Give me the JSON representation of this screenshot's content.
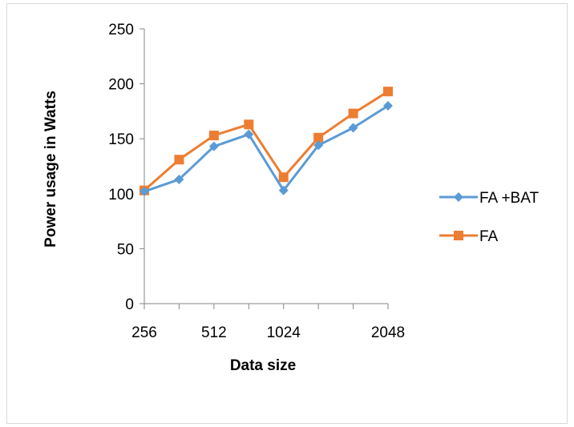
{
  "chart_data": {
    "type": "line",
    "title": "",
    "xlabel": "Data  size",
    "ylabel": "Power usage  in Watts",
    "categories": [
      "256",
      "",
      "512",
      "",
      "1024",
      "",
      "",
      "2048"
    ],
    "ylim": [
      0,
      250
    ],
    "yticks": [
      0,
      50,
      100,
      150,
      200,
      250
    ],
    "grid": false,
    "legend_position": "right",
    "series": [
      {
        "name": "FA +BAT",
        "color": "#5b9bd5",
        "marker": "diamond",
        "values": [
          102,
          113,
          143,
          154,
          103,
          144,
          160,
          180
        ]
      },
      {
        "name": "FA",
        "color": "#ed7d31",
        "marker": "square",
        "values": [
          103,
          131,
          153,
          163,
          115,
          151,
          173,
          193
        ]
      }
    ]
  }
}
